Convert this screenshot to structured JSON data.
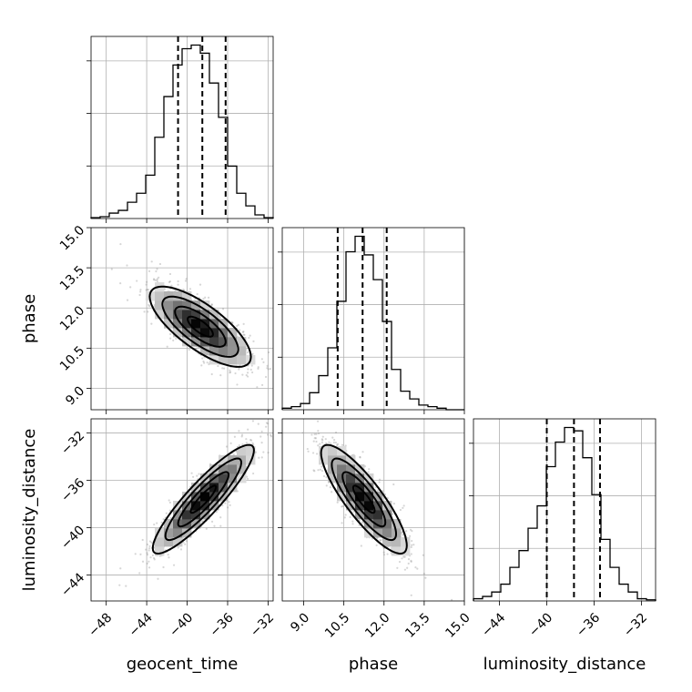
{
  "chart_data": {
    "type": "corner",
    "parameters": [
      "geocent_time",
      "phase",
      "luminosity_distance"
    ],
    "axis_labels": {
      "x": [
        "geocent_time",
        "phase",
        "luminosity_distance"
      ],
      "y_row2": "phase",
      "y_row3": "luminosity_distance"
    },
    "grid": true,
    "ranges": {
      "geocent_time": [
        -49.5,
        -31.5
      ],
      "phase": [
        8.2,
        15.0
      ],
      "luminosity_distance": [
        -46.2,
        -30.8
      ]
    },
    "ticks": {
      "geocent_time": {
        "values": [
          -48,
          -44,
          -40,
          -36,
          -32
        ],
        "labels": [
          "−48",
          "−44",
          "−40",
          "−36",
          "−32"
        ]
      },
      "phase": {
        "values": [
          9.0,
          10.5,
          12.0,
          13.5,
          15.0
        ],
        "labels": [
          "9.0",
          "10.5",
          "12.0",
          "13.5",
          "15.0"
        ]
      },
      "luminosity_distance": {
        "values": [
          -44,
          -40,
          -36,
          -32
        ],
        "labels": [
          "−44",
          "−40",
          "−36",
          "−32"
        ]
      }
    },
    "quantiles": {
      "geocent_time": [
        -40.9,
        -38.5,
        -36.2
      ],
      "phase": [
        10.27,
        11.2,
        12.1
      ],
      "luminosity_distance": [
        -40.0,
        -37.7,
        -35.5
      ]
    },
    "histograms": {
      "geocent_time": {
        "bins": [
          [
            -49.5,
            -48.6
          ],
          [
            -48.6,
            -47.7
          ],
          [
            -47.7,
            -46.8
          ],
          [
            -46.8,
            -45.9
          ],
          [
            -45.9,
            -45.0
          ],
          [
            -45.0,
            -44.1
          ],
          [
            -44.1,
            -43.2
          ],
          [
            -43.2,
            -42.3
          ],
          [
            -42.3,
            -41.4
          ],
          [
            -41.4,
            -40.5
          ],
          [
            -40.5,
            -39.6
          ],
          [
            -39.6,
            -38.7
          ],
          [
            -38.7,
            -37.8
          ],
          [
            -37.8,
            -36.9
          ],
          [
            -36.9,
            -36.0
          ],
          [
            -36.0,
            -35.1
          ],
          [
            -35.1,
            -34.2
          ],
          [
            -34.2,
            -33.3
          ],
          [
            -33.3,
            -32.4
          ],
          [
            -32.4,
            -31.5
          ]
        ],
        "counts": [
          1,
          2,
          6,
          9,
          18,
          28,
          48,
          90,
          135,
          170,
          188,
          192,
          183,
          150,
          112,
          58,
          28,
          14,
          4,
          1
        ]
      },
      "phase": {
        "bins": [
          [
            8.2,
            8.54
          ],
          [
            8.54,
            8.88
          ],
          [
            8.88,
            9.22
          ],
          [
            9.22,
            9.56
          ],
          [
            9.56,
            9.9
          ],
          [
            9.9,
            10.24
          ],
          [
            10.24,
            10.58
          ],
          [
            10.58,
            10.92
          ],
          [
            10.92,
            11.26
          ],
          [
            11.26,
            11.6
          ],
          [
            11.6,
            11.94
          ],
          [
            11.94,
            12.28
          ],
          [
            12.28,
            12.62
          ],
          [
            12.62,
            12.96
          ],
          [
            12.96,
            13.3
          ],
          [
            13.3,
            13.64
          ],
          [
            13.64,
            13.98
          ],
          [
            13.98,
            14.32
          ],
          [
            14.32,
            14.66
          ],
          [
            14.66,
            15.0
          ]
        ],
        "counts": [
          1,
          2,
          4,
          11,
          22,
          40,
          70,
          102,
          112,
          100,
          84,
          57,
          26,
          12,
          7,
          3,
          2,
          1,
          0,
          0
        ]
      },
      "luminosity_distance": {
        "bins": [
          [
            -46.2,
            -45.43
          ],
          [
            -45.43,
            -44.66
          ],
          [
            -44.66,
            -43.89
          ],
          [
            -43.89,
            -43.12
          ],
          [
            -43.12,
            -42.35
          ],
          [
            -42.35,
            -41.58
          ],
          [
            -41.58,
            -40.81
          ],
          [
            -40.81,
            -40.04
          ],
          [
            -40.04,
            -39.27
          ],
          [
            -39.27,
            -38.5
          ],
          [
            -38.5,
            -37.73
          ],
          [
            -37.73,
            -36.96
          ],
          [
            -36.96,
            -36.19
          ],
          [
            -36.19,
            -35.42
          ],
          [
            -35.42,
            -34.65
          ],
          [
            -34.65,
            -33.88
          ],
          [
            -33.88,
            -33.11
          ],
          [
            -33.11,
            -32.34
          ],
          [
            -32.34,
            -31.57
          ],
          [
            -31.57,
            -30.8
          ]
        ],
        "counts": [
          2,
          4,
          8,
          15,
          30,
          45,
          65,
          85,
          120,
          142,
          155,
          152,
          128,
          95,
          55,
          30,
          15,
          8,
          2,
          1
        ]
      }
    },
    "joint": [
      {
        "x": "geocent_time",
        "y": "phase",
        "mean": [
          -38.7,
          11.3
        ],
        "sd": [
          2.5,
          0.75
        ],
        "rho": -0.75
      },
      {
        "x": "geocent_time",
        "y": "luminosity_distance",
        "mean": [
          -38.4,
          -37.6
        ],
        "sd": [
          2.5,
          2.3
        ],
        "rho": 0.9
      },
      {
        "x": "phase",
        "y": "luminosity_distance",
        "mean": [
          11.25,
          -37.6
        ],
        "sd": [
          0.8,
          2.3
        ],
        "rho": -0.85
      }
    ],
    "contour_levels_sigma": [
      0.5,
      1.0,
      1.5,
      2.0
    ]
  }
}
